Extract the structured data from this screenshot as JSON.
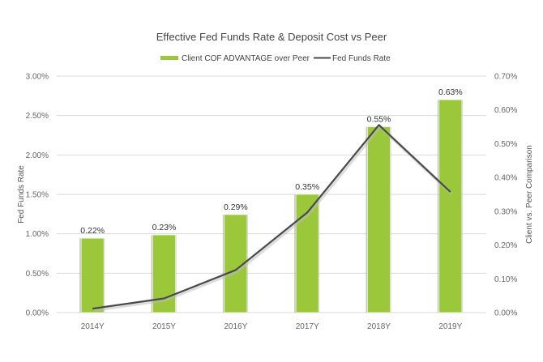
{
  "chart_data": {
    "type": "bar+line",
    "title": "Effective Fed Funds Rate & Deposit Cost vs Peer",
    "legend": {
      "position": "top",
      "entries": [
        {
          "label": "Client COF ADVANTAGE over Peer",
          "kind": "bar",
          "color": "#9bc83a"
        },
        {
          "label": "Fed Funds Rate",
          "kind": "line",
          "color": "#4a4a4a"
        }
      ]
    },
    "categories": [
      "2014Y",
      "2015Y",
      "2016Y",
      "2017Y",
      "2018Y",
      "2019Y"
    ],
    "series": [
      {
        "name": "Client COF ADVANTAGE over Peer",
        "type": "bar",
        "axis": "right",
        "values": [
          0.22,
          0.23,
          0.29,
          0.35,
          0.55,
          0.63
        ],
        "labels": [
          "0.22%",
          "0.23%",
          "0.29%",
          "0.35%",
          "0.55%",
          "0.63%"
        ],
        "color": "#9bc83a"
      },
      {
        "name": "Fed Funds Rate",
        "type": "line",
        "axis": "left",
        "values": [
          0.05,
          0.18,
          0.54,
          1.27,
          2.38,
          1.53
        ],
        "color": "#4a4a4a"
      }
    ],
    "left_axis": {
      "label": "Fed Funds Rate",
      "range": [
        0,
        3.0
      ],
      "ticks": [
        0,
        0.5,
        1.0,
        1.5,
        2.0,
        2.5,
        3.0
      ],
      "tick_labels": [
        "0.00%",
        "0.50%",
        "1.00%",
        "1.50%",
        "2.00%",
        "2.50%",
        "3.00%"
      ]
    },
    "right_axis": {
      "label": "Client vs. Peer Comparison",
      "range": [
        0,
        0.7
      ],
      "ticks": [
        0,
        0.1,
        0.2,
        0.3,
        0.4,
        0.5,
        0.6,
        0.7
      ],
      "tick_labels": [
        "0.00%",
        "0.10%",
        "0.20%",
        "0.30%",
        "0.40%",
        "0.50%",
        "0.60%",
        "0.70%"
      ]
    },
    "grid": true
  }
}
